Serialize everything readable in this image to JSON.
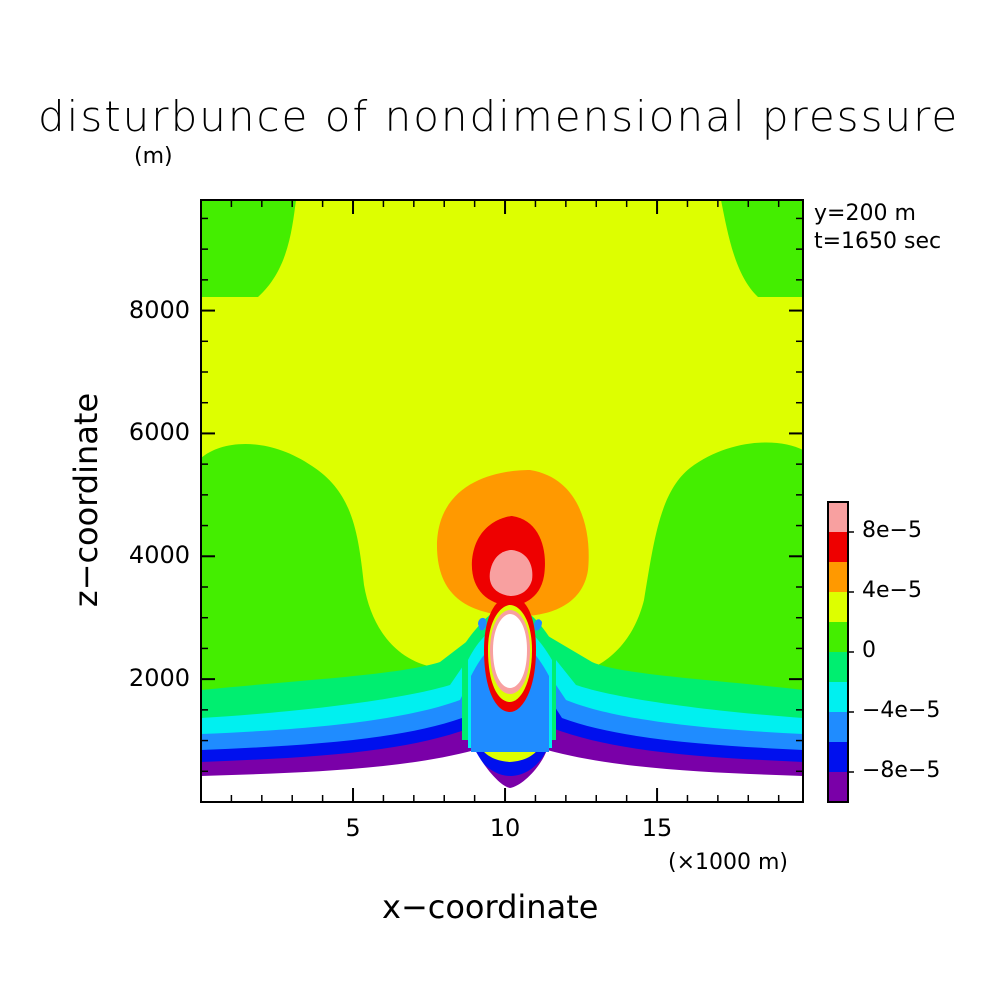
{
  "chart_data": {
    "type": "heatmap",
    "title": "disturbunce of nondimensional pressure",
    "xlabel": "x−coordinate",
    "ylabel": "z−coordinate",
    "x_unit": "(×1000 m)",
    "z_unit": "(m)",
    "annotations": [
      "y=200 m",
      "t=1650 sec"
    ],
    "xlim": [
      0,
      19.8
    ],
    "ylim": [
      0,
      9800
    ],
    "x_ticks": [
      5,
      10,
      15
    ],
    "x_tick_labels": [
      "5",
      "10",
      "15"
    ],
    "y_ticks": [
      2000,
      4000,
      6000,
      8000
    ],
    "y_tick_labels": [
      "2000",
      "4000",
      "6000",
      "8000"
    ],
    "levels": [
      -0.0001,
      -8e-05,
      -6e-05,
      -4e-05,
      -2e-05,
      0,
      2e-05,
      4e-05,
      6e-05,
      8e-05,
      0.0001
    ],
    "colorbar_labels": [
      {
        "level": 8e-05,
        "text": "8e−5"
      },
      {
        "level": 4e-05,
        "text": "4e−5"
      },
      {
        "level": 0,
        "text": "0"
      },
      {
        "level": -4e-05,
        "text": "−4e−5"
      },
      {
        "level": -8e-05,
        "text": "−8e−5"
      }
    ],
    "colors": [
      "#7a00a8",
      "#0010ee",
      "#1f8cff",
      "#00f0f0",
      "#00ee70",
      "#44ee00",
      "#ddff00",
      "#ff9900",
      "#ee0000",
      "#f8a0a0"
    ],
    "field_summary": {
      "bubble_center_x": 10.2,
      "bubble_center_z": 2700,
      "positive_anomaly_top_z": 5500,
      "surface_negative_band_z": [
        500,
        1400
      ]
    }
  }
}
